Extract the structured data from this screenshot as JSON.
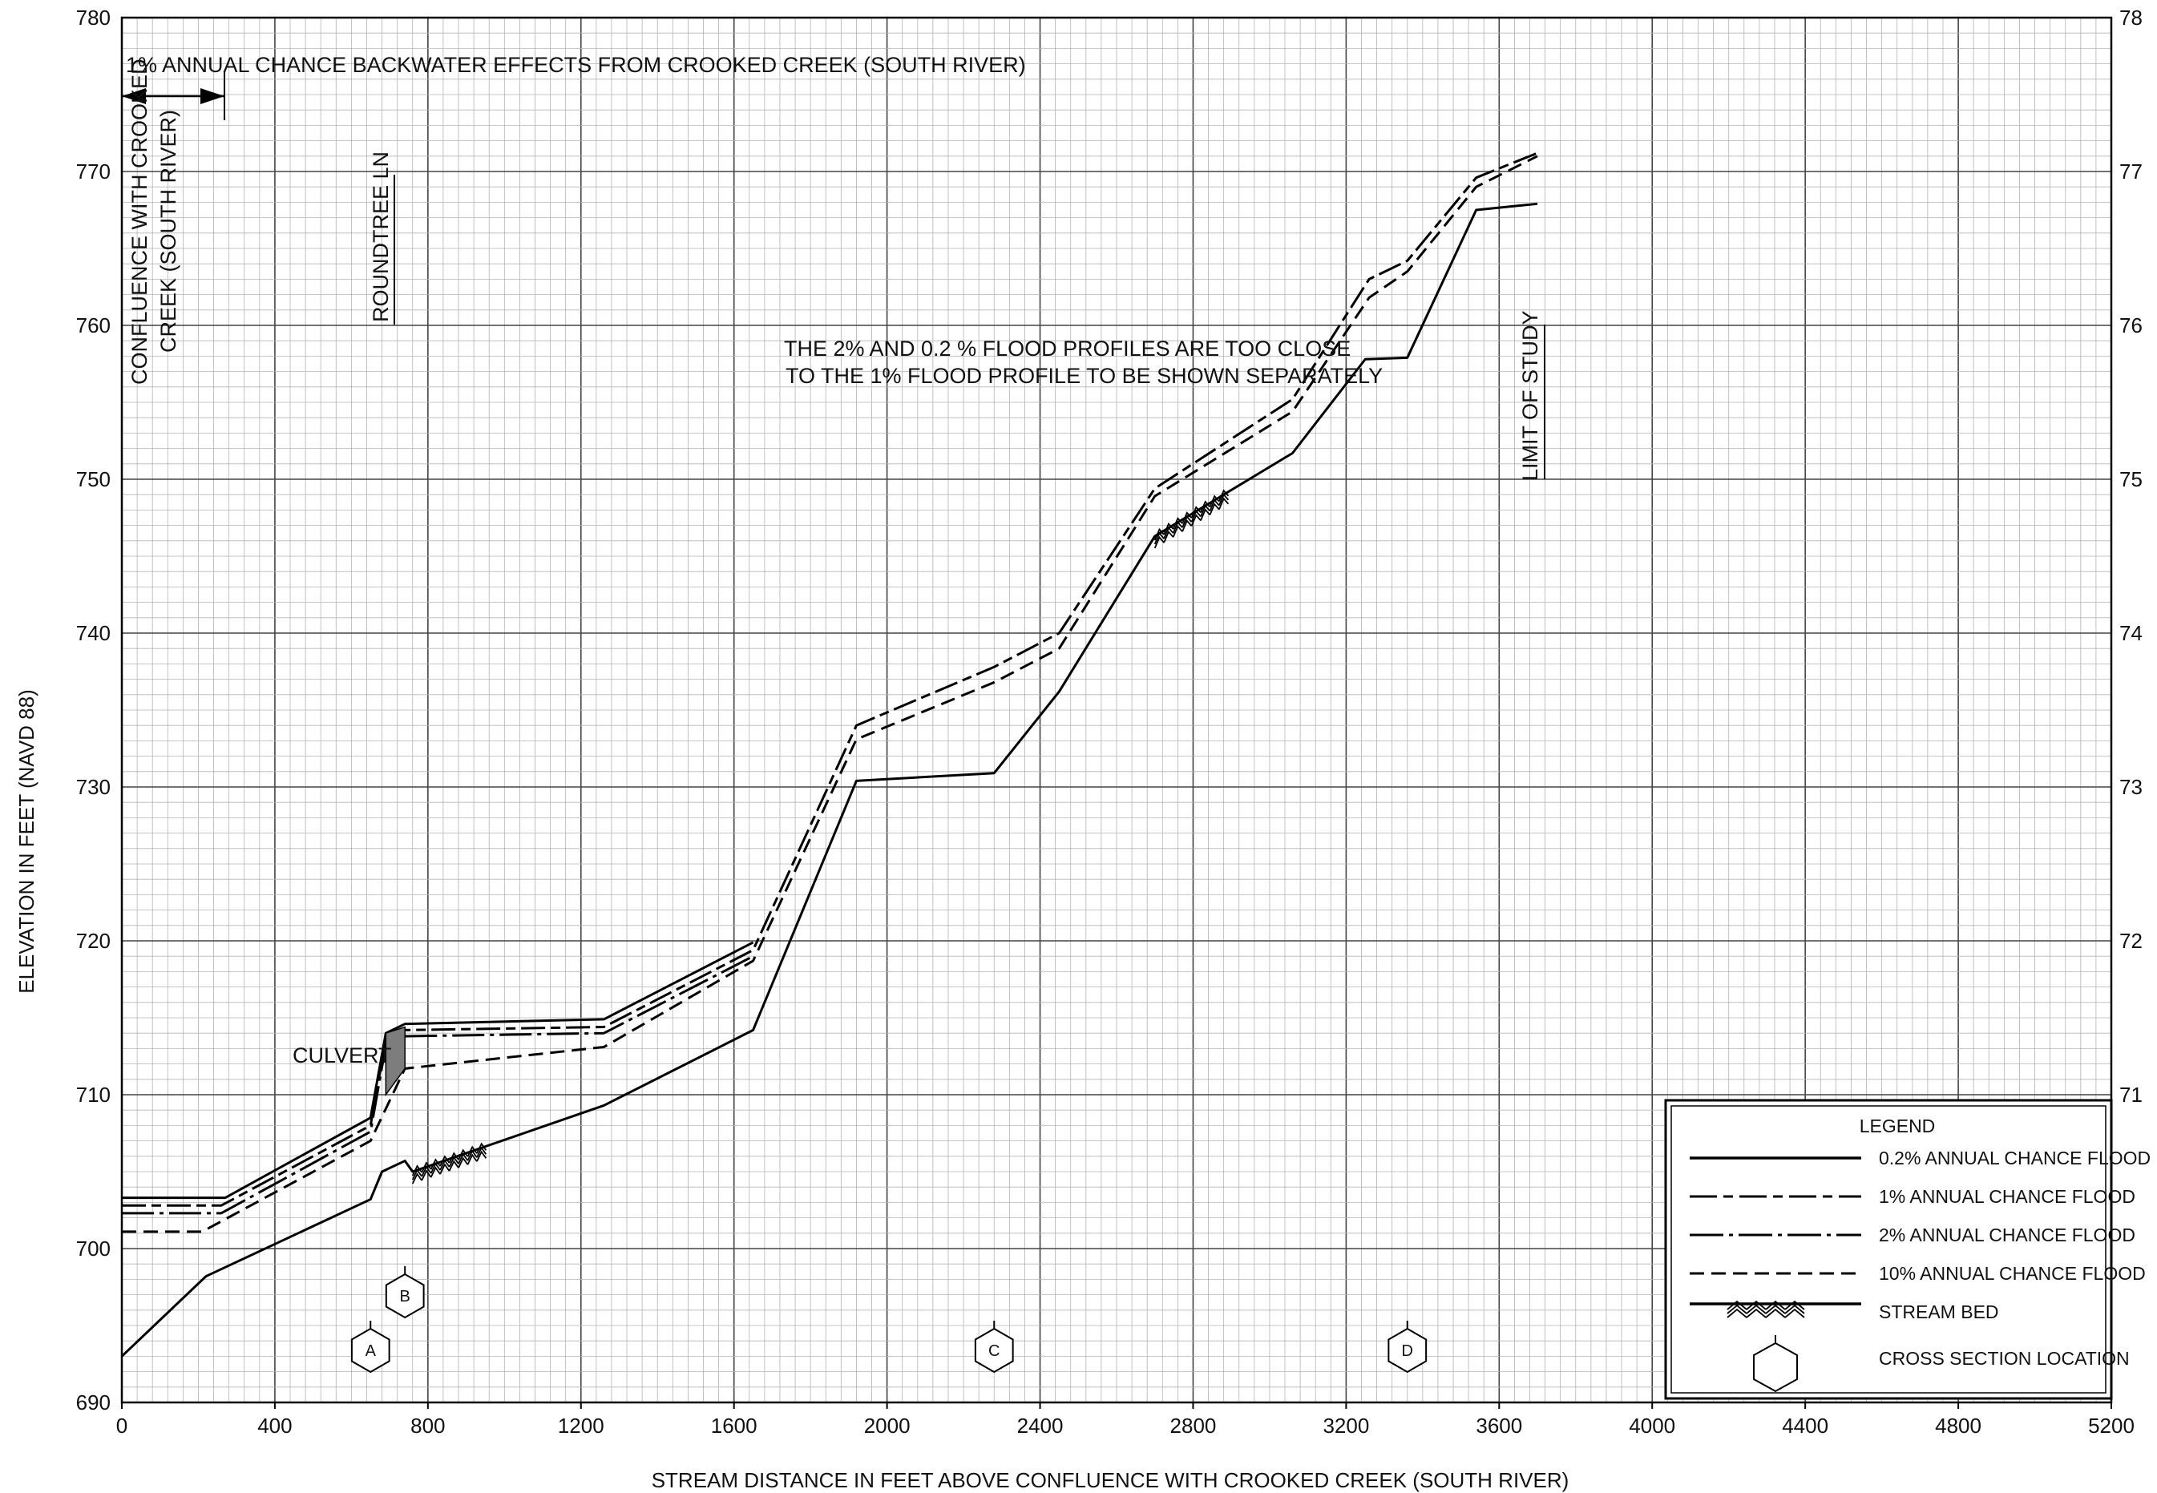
{
  "chart_data": {
    "type": "line",
    "xlabel": "STREAM DISTANCE IN FEET ABOVE CONFLUENCE WITH CROOKED CREEK (SOUTH RIVER)",
    "ylabel": "ELEVATION IN FEET (NAVD 88)",
    "xlim": [
      0,
      5200
    ],
    "ylim": [
      690,
      780
    ],
    "x_ticks": [
      "0",
      "400",
      "800",
      "1200",
      "1600",
      "2000",
      "2400",
      "2800",
      "3200",
      "3600",
      "4000",
      "4400",
      "4800",
      "5200"
    ],
    "y_ticks": [
      "690",
      "700",
      "710",
      "720",
      "730",
      "740",
      "750",
      "760",
      "770",
      "780"
    ],
    "y_ticks_right": [
      "78",
      "77",
      "76",
      "75",
      "74",
      "73",
      "72",
      "71"
    ],
    "grid": true,
    "legend_position": "bottom-right",
    "legend": {
      "title": "LEGEND",
      "entries": [
        {
          "label": "0.2% ANNUAL CHANCE FLOOD",
          "style": "solid"
        },
        {
          "label": "1% ANNUAL CHANCE FLOOD",
          "style": "long-dash-short-dash"
        },
        {
          "label": "2% ANNUAL CHANCE FLOOD",
          "style": "long-dash-dot"
        },
        {
          "label": "10% ANNUAL CHANCE FLOOD",
          "style": "dashed"
        },
        {
          "label": "STREAM BED",
          "style": "streambed"
        },
        {
          "label": "CROSS SECTION LOCATION",
          "style": "hexagon"
        }
      ]
    },
    "series": [
      {
        "name": "0.2% ANNUAL CHANCE FLOOD",
        "style": "solid",
        "x": [
          0,
          270,
          650,
          690,
          740,
          1260,
          1650
        ],
        "y": [
          703.3,
          703.3,
          708.5,
          714.0,
          714.6,
          714.9,
          719.9
        ]
      },
      {
        "name": "1% ANNUAL CHANCE FLOOD",
        "style": "long-dash-short-dash",
        "x": [
          0,
          260,
          650,
          690,
          740,
          1260,
          1650,
          1920,
          2280,
          2450,
          2700,
          3060,
          3260,
          3360,
          3540,
          3700
        ],
        "y": [
          702.8,
          702.8,
          708.0,
          713.6,
          714.2,
          714.4,
          719.4,
          734.0,
          737.8,
          740.0,
          749.4,
          755.2,
          763.0,
          764.2,
          769.6,
          771.2
        ]
      },
      {
        "name": "2% ANNUAL CHANCE FLOOD",
        "style": "long-dash-dot",
        "x": [
          0,
          260,
          650,
          690,
          740,
          1260,
          1650
        ],
        "y": [
          702.3,
          702.3,
          707.6,
          713.2,
          713.8,
          714.0,
          719.0
        ]
      },
      {
        "name": "10% ANNUAL CHANCE FLOOD",
        "style": "dashed",
        "x": [
          0,
          210,
          650,
          740,
          1260,
          1650,
          1920,
          2280,
          2450,
          2700,
          3060,
          3260,
          3360,
          3540,
          3700
        ],
        "y": [
          701.1,
          701.1,
          707.0,
          711.7,
          713.1,
          718.7,
          733.1,
          736.8,
          739.0,
          748.9,
          754.4,
          761.8,
          763.5,
          769.0,
          771.0
        ]
      },
      {
        "name": "STREAM BED",
        "style": "streambed",
        "x": [
          0,
          220,
          650,
          680,
          740,
          760,
          1260,
          1650,
          1920,
          2280,
          2450,
          2700,
          3060,
          3250,
          3360,
          3540,
          3700
        ],
        "y": [
          693.0,
          698.2,
          703.2,
          705.0,
          705.7,
          705.0,
          709.3,
          714.2,
          730.4,
          730.9,
          736.2,
          746.3,
          751.7,
          757.8,
          757.9,
          767.5,
          767.9
        ]
      }
    ],
    "cross_sections": [
      {
        "label": "A",
        "x": 650
      },
      {
        "label": "B",
        "x": 740
      },
      {
        "label": "C",
        "x": 2280
      },
      {
        "label": "D",
        "x": 3360
      }
    ],
    "annotations": [
      {
        "text": "1% ANNUAL CHANCE BACKWATER EFFECTS FROM CROOKED CREEK (SOUTH RIVER)"
      },
      {
        "text": "CONFLUENCE WITH CROOKED"
      },
      {
        "text": "CREEK (SOUTH RIVER)"
      },
      {
        "text": "ROUNDTREE LN"
      },
      {
        "text": "CULVERT"
      },
      {
        "text": "THE 2% AND 0.2 % FLOOD PROFILES ARE TOO CLOSE"
      },
      {
        "text": "TO THE 1% FLOOD PROFILE TO BE SHOWN SEPARATELY"
      },
      {
        "text": "LIMIT OF STUDY"
      }
    ]
  }
}
